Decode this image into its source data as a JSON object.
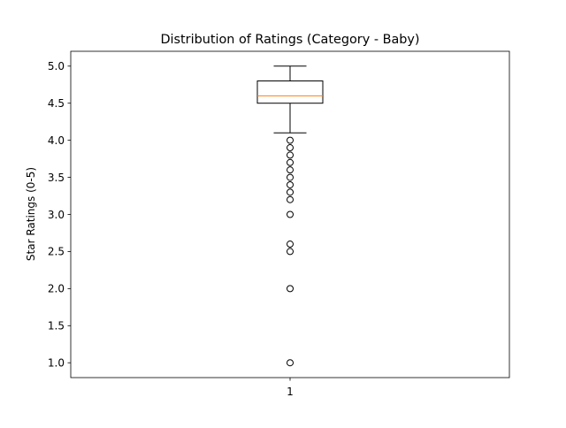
{
  "chart_data": {
    "type": "box",
    "title": "Distribution of Ratings (Category - Baby)",
    "xlabel": "",
    "ylabel": "Star Ratings (0-5)",
    "categories": [
      "1"
    ],
    "ylim": [
      0.8,
      5.2
    ],
    "yticks": [
      1.0,
      1.5,
      2.0,
      2.5,
      3.0,
      3.5,
      4.0,
      4.5,
      5.0
    ],
    "ytick_labels": [
      "1.0",
      "1.5",
      "2.0",
      "2.5",
      "3.0",
      "3.5",
      "4.0",
      "4.5",
      "5.0"
    ],
    "grid": false,
    "series": [
      {
        "whisker_low": 4.1,
        "q1": 4.5,
        "median": 4.6,
        "q3": 4.8,
        "whisker_high": 5.0,
        "outliers": [
          4.0,
          3.9,
          3.8,
          3.7,
          3.6,
          3.5,
          3.4,
          3.3,
          3.2,
          3.0,
          2.6,
          2.5,
          2.0,
          1.0
        ]
      }
    ],
    "colors": {
      "box": "#000000",
      "median": "#ff7f0e",
      "outlier": "#000000"
    }
  }
}
